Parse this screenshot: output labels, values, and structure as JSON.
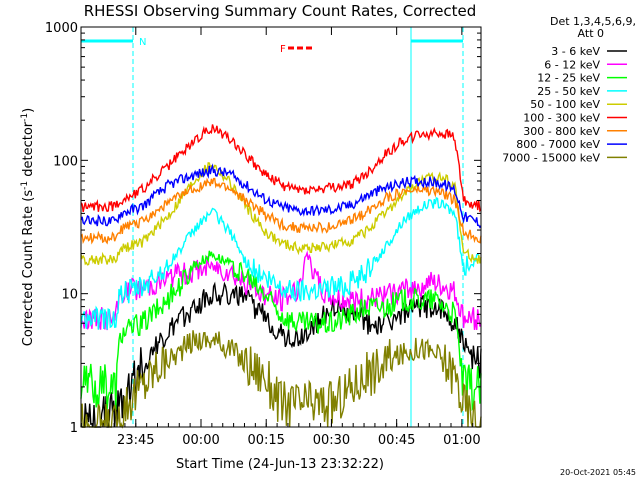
{
  "chart_data": {
    "type": "line",
    "title": "RHESSI Observing Summary Count Rates, Corrected",
    "xlabel": "Start Time (24-Jun-13 23:32:22)",
    "ylabel_main": "Corrected Count Rate (s",
    "ylabel_sup1": "-1",
    "ylabel_mid": " detector",
    "ylabel_sup2": "-1",
    "ylabel_end": ")",
    "y_scale": "log",
    "ylim": [
      1,
      1000
    ],
    "y_ticks": [
      {
        "value": 1,
        "label": "1"
      },
      {
        "value": 10,
        "label": "10"
      },
      {
        "value": 100,
        "label": "100"
      },
      {
        "value": 1000,
        "label": "1000"
      }
    ],
    "xlim_minutes": [
      0,
      92
    ],
    "x_ticks": [
      {
        "minute": 12.6,
        "label": "23:45"
      },
      {
        "minute": 27.6,
        "label": "00:00"
      },
      {
        "minute": 42.6,
        "label": "00:15"
      },
      {
        "minute": 57.6,
        "label": "00:30"
      },
      {
        "minute": 72.6,
        "label": "00:45"
      },
      {
        "minute": 87.6,
        "label": "01:00"
      }
    ],
    "legend_header": [
      "Det 1,3,4,5,6,9,",
      "Att 0"
    ],
    "legend_position": "outside-right",
    "series": [
      {
        "name": "3 - 6 keV",
        "color": "#000000",
        "points": [
          [
            0,
            1
          ],
          [
            8,
            1.3
          ],
          [
            14,
            3
          ],
          [
            20,
            5
          ],
          [
            26,
            8
          ],
          [
            30,
            10
          ],
          [
            34,
            10
          ],
          [
            38,
            9
          ],
          [
            42,
            7
          ],
          [
            46,
            5
          ],
          [
            50,
            4.5
          ],
          [
            54,
            6
          ],
          [
            58,
            8
          ],
          [
            62,
            7
          ],
          [
            66,
            6
          ],
          [
            70,
            6
          ],
          [
            74,
            7
          ],
          [
            78,
            8
          ],
          [
            82,
            8
          ],
          [
            86,
            6
          ],
          [
            90,
            3
          ],
          [
            92,
            3
          ]
        ]
      },
      {
        "name": "6 - 12 keV",
        "color": "#ff00ff",
        "points": [
          [
            0,
            6.5
          ],
          [
            8,
            6.5
          ],
          [
            9,
            10
          ],
          [
            14,
            11
          ],
          [
            20,
            13
          ],
          [
            26,
            15
          ],
          [
            30,
            16
          ],
          [
            34,
            15
          ],
          [
            38,
            12
          ],
          [
            42,
            10
          ],
          [
            46,
            9
          ],
          [
            50,
            11
          ],
          [
            52,
            20
          ],
          [
            54,
            13
          ],
          [
            56,
            10
          ],
          [
            60,
            9
          ],
          [
            64,
            9
          ],
          [
            68,
            9
          ],
          [
            72,
            10
          ],
          [
            76,
            11
          ],
          [
            80,
            12
          ],
          [
            84,
            11
          ],
          [
            86,
            10
          ],
          [
            88,
            6.5
          ],
          [
            92,
            6.5
          ]
        ]
      },
      {
        "name": "12 - 25 keV",
        "color": "#00ff00",
        "points": [
          [
            0,
            2
          ],
          [
            8,
            2
          ],
          [
            9,
            5
          ],
          [
            14,
            6
          ],
          [
            20,
            9
          ],
          [
            26,
            16
          ],
          [
            30,
            20
          ],
          [
            34,
            17
          ],
          [
            38,
            13
          ],
          [
            42,
            10
          ],
          [
            46,
            7
          ],
          [
            50,
            6
          ],
          [
            54,
            6
          ],
          [
            58,
            6
          ],
          [
            62,
            7
          ],
          [
            66,
            8
          ],
          [
            70,
            8
          ],
          [
            74,
            9
          ],
          [
            78,
            9
          ],
          [
            82,
            9
          ],
          [
            86,
            7
          ],
          [
            88,
            2
          ],
          [
            92,
            2
          ]
        ]
      },
      {
        "name": "25 - 50 keV",
        "color": "#00ffff",
        "points": [
          [
            0,
            6.5
          ],
          [
            8,
            6.5
          ],
          [
            9,
            10
          ],
          [
            14,
            11
          ],
          [
            20,
            16
          ],
          [
            26,
            30
          ],
          [
            30,
            42
          ],
          [
            34,
            30
          ],
          [
            38,
            17
          ],
          [
            42,
            13
          ],
          [
            46,
            11
          ],
          [
            50,
            10.5
          ],
          [
            54,
            11
          ],
          [
            58,
            11
          ],
          [
            62,
            12
          ],
          [
            66,
            15
          ],
          [
            70,
            22
          ],
          [
            74,
            35
          ],
          [
            78,
            45
          ],
          [
            82,
            48
          ],
          [
            84,
            45
          ],
          [
            86,
            40
          ],
          [
            88,
            15
          ],
          [
            92,
            19
          ]
        ]
      },
      {
        "name": "50 - 100 keV",
        "color": "#cccc00",
        "points": [
          [
            0,
            18
          ],
          [
            8,
            18
          ],
          [
            9,
            22
          ],
          [
            14,
            24
          ],
          [
            20,
            38
          ],
          [
            26,
            70
          ],
          [
            30,
            95
          ],
          [
            34,
            70
          ],
          [
            38,
            45
          ],
          [
            42,
            30
          ],
          [
            46,
            24
          ],
          [
            50,
            22
          ],
          [
            54,
            22
          ],
          [
            58,
            23
          ],
          [
            62,
            25
          ],
          [
            66,
            30
          ],
          [
            70,
            40
          ],
          [
            74,
            55
          ],
          [
            78,
            70
          ],
          [
            82,
            75
          ],
          [
            84,
            73
          ],
          [
            86,
            65
          ],
          [
            88,
            20
          ],
          [
            92,
            18
          ]
        ]
      },
      {
        "name": "100 - 300 keV",
        "color": "#ff0000",
        "points": [
          [
            0,
            45
          ],
          [
            8,
            45
          ],
          [
            9,
            50
          ],
          [
            14,
            60
          ],
          [
            20,
            90
          ],
          [
            26,
            140
          ],
          [
            30,
            175
          ],
          [
            34,
            150
          ],
          [
            38,
            110
          ],
          [
            42,
            80
          ],
          [
            46,
            65
          ],
          [
            50,
            60
          ],
          [
            54,
            60
          ],
          [
            58,
            62
          ],
          [
            62,
            65
          ],
          [
            66,
            80
          ],
          [
            70,
            110
          ],
          [
            74,
            140
          ],
          [
            78,
            155
          ],
          [
            82,
            160
          ],
          [
            84,
            155
          ],
          [
            86,
            150
          ],
          [
            88,
            50
          ],
          [
            92,
            45
          ]
        ]
      },
      {
        "name": "300 - 800 keV",
        "color": "#ff8000",
        "points": [
          [
            0,
            26
          ],
          [
            8,
            26
          ],
          [
            9,
            30
          ],
          [
            14,
            35
          ],
          [
            20,
            48
          ],
          [
            26,
            62
          ],
          [
            30,
            68
          ],
          [
            34,
            62
          ],
          [
            38,
            50
          ],
          [
            42,
            40
          ],
          [
            46,
            33
          ],
          [
            50,
            31
          ],
          [
            54,
            31
          ],
          [
            58,
            32
          ],
          [
            62,
            35
          ],
          [
            66,
            42
          ],
          [
            70,
            52
          ],
          [
            74,
            58
          ],
          [
            78,
            60
          ],
          [
            82,
            58
          ],
          [
            84,
            55
          ],
          [
            86,
            50
          ],
          [
            88,
            29
          ],
          [
            92,
            26
          ]
        ]
      },
      {
        "name": "800 - 7000 keV",
        "color": "#0000ff",
        "points": [
          [
            0,
            35
          ],
          [
            8,
            35
          ],
          [
            9,
            40
          ],
          [
            14,
            45
          ],
          [
            20,
            65
          ],
          [
            26,
            78
          ],
          [
            30,
            84
          ],
          [
            34,
            80
          ],
          [
            38,
            65
          ],
          [
            42,
            52
          ],
          [
            46,
            45
          ],
          [
            50,
            42
          ],
          [
            54,
            42
          ],
          [
            58,
            43
          ],
          [
            62,
            46
          ],
          [
            66,
            55
          ],
          [
            70,
            62
          ],
          [
            74,
            68
          ],
          [
            78,
            70
          ],
          [
            82,
            68
          ],
          [
            84,
            65
          ],
          [
            86,
            60
          ],
          [
            88,
            38
          ],
          [
            92,
            34
          ]
        ]
      },
      {
        "name": "7000 - 15000 keV",
        "color": "#808000",
        "points": [
          [
            0,
            1
          ],
          [
            4,
            1
          ],
          [
            8,
            1
          ],
          [
            10,
            1.5
          ],
          [
            14,
            2
          ],
          [
            18,
            3
          ],
          [
            22,
            3.5
          ],
          [
            26,
            4.5
          ],
          [
            30,
            4.5
          ],
          [
            34,
            4
          ],
          [
            38,
            3
          ],
          [
            42,
            2.5
          ],
          [
            46,
            1.5
          ],
          [
            50,
            1.5
          ],
          [
            54,
            1.5
          ],
          [
            58,
            1.5
          ],
          [
            62,
            2
          ],
          [
            66,
            2.5
          ],
          [
            70,
            3
          ],
          [
            74,
            3.5
          ],
          [
            78,
            4
          ],
          [
            82,
            3.5
          ],
          [
            86,
            2.5
          ],
          [
            88,
            1.5
          ],
          [
            90,
            1.2
          ],
          [
            92,
            1
          ]
        ]
      }
    ],
    "annotations": [
      {
        "text": "N",
        "color": "#00ffff"
      },
      {
        "text": "F",
        "color": "#ff0000"
      }
    ],
    "footer_date": "20-Oct-2021 05:45"
  }
}
